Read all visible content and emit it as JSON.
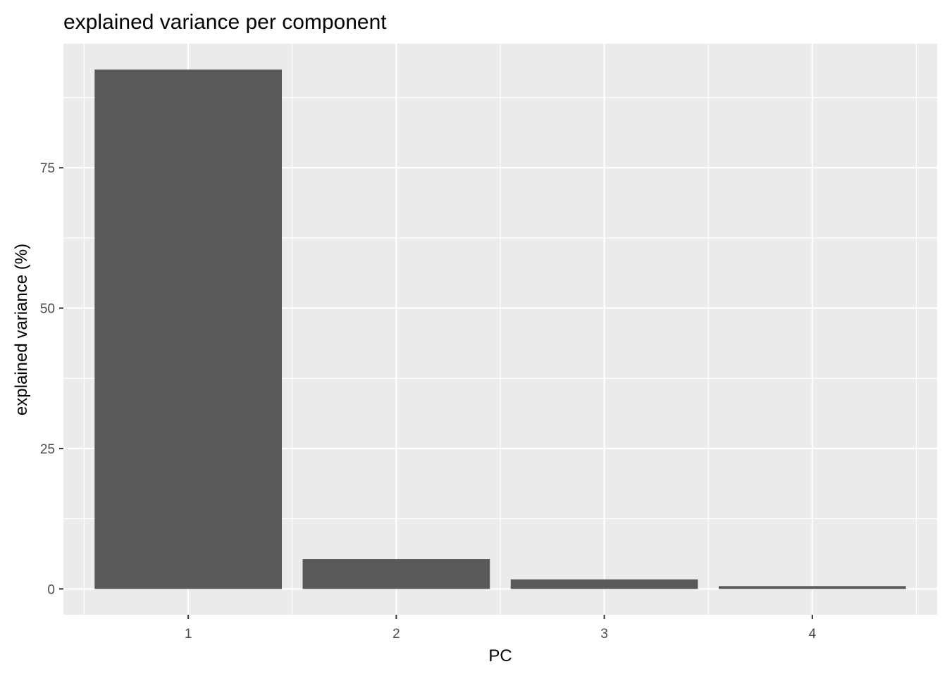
{
  "chart_data": {
    "type": "bar",
    "title": "explained variance per component",
    "xlabel": "PC",
    "ylabel": "explained variance (%)",
    "categories": [
      "1",
      "2",
      "3",
      "4"
    ],
    "values": [
      92.5,
      5.3,
      1.7,
      0.5
    ],
    "ylim": [
      -4.6,
      97.1
    ],
    "yticks": [
      0,
      25,
      50,
      75
    ],
    "grid": true,
    "legend": "none",
    "colors": {
      "panel_background": "#EBEBEB",
      "grid_line": "#FFFFFF",
      "bar_fill": "#595959",
      "tick_color": "#333333",
      "tick_label": "#4D4D4D"
    }
  }
}
